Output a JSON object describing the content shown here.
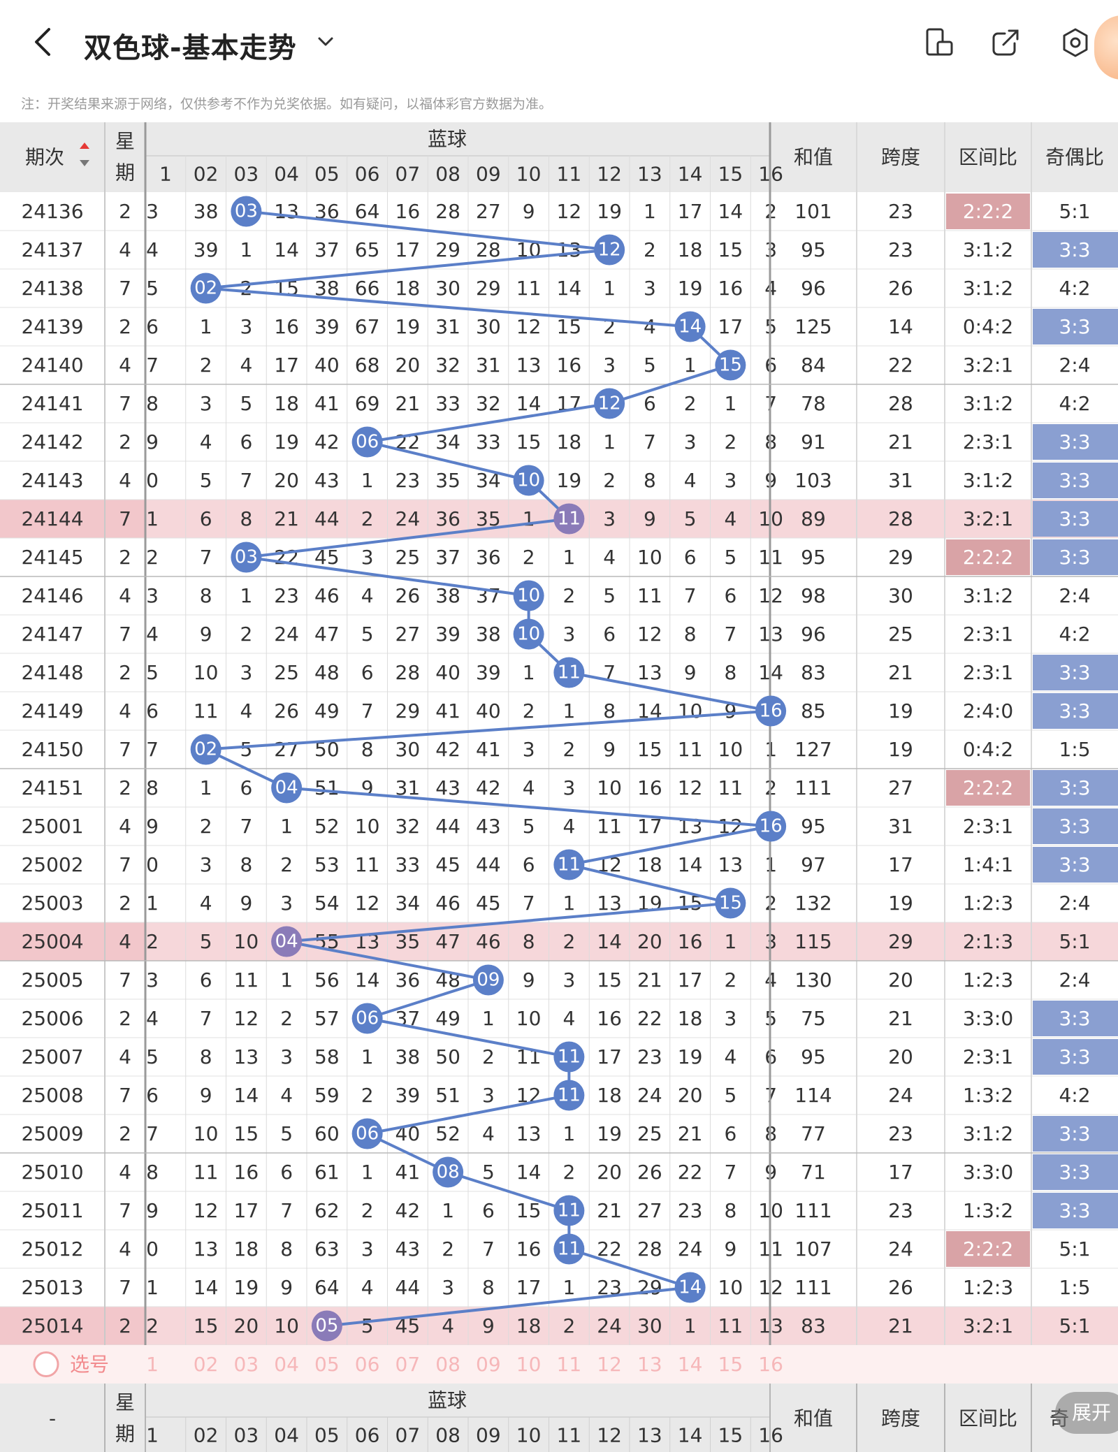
{
  "header": {
    "title": "双色球-基本走势"
  },
  "notice": "注：开奖结果来源于网络，仅供参考不作为兑奖依据。如有疑问，以福体彩官方数据为准。",
  "table": {
    "col_issue": "期次",
    "col_week": [
      "星",
      "期"
    ],
    "col_blue": "蓝球",
    "col_sum": "和值",
    "col_span": "跨度",
    "col_zone": "区间比",
    "col_odd": "奇偶比",
    "blue_nums": [
      "1",
      "02",
      "03",
      "04",
      "05",
      "06",
      "07",
      "08",
      "09",
      "10",
      "11",
      "12",
      "13",
      "14",
      "15",
      "16"
    ],
    "colors": {
      "ball": "#5b7fc8",
      "ball_highlight": "#8a7bb8",
      "zone_highlight": "#d9a3a6",
      "odd_highlight": "#8a9fd1",
      "row_highlight": "#f6d7da",
      "pick_row": "#fdf0f0"
    },
    "rows": [
      {
        "issue": "24136",
        "week": "2",
        "first": "3",
        "cells": [
          38,
          0,
          13,
          36,
          64,
          16,
          28,
          27,
          9,
          12,
          19,
          1,
          17,
          14,
          2
        ],
        "blue": 3,
        "sum": 101,
        "span": 23,
        "zone": "2:2:2",
        "zone_hl": true,
        "odd": "5:1",
        "odd_hl": false,
        "hl": false
      },
      {
        "issue": "24137",
        "week": "4",
        "first": "4",
        "cells": [
          39,
          1,
          14,
          37,
          65,
          17,
          29,
          28,
          10,
          13,
          0,
          2,
          18,
          15,
          3
        ],
        "blue": 12,
        "sum": 95,
        "span": 23,
        "zone": "3:1:2",
        "zone_hl": false,
        "odd": "3:3",
        "odd_hl": true,
        "hl": false
      },
      {
        "issue": "24138",
        "week": "7",
        "first": "5",
        "cells": [
          0,
          2,
          15,
          38,
          66,
          18,
          30,
          29,
          11,
          14,
          1,
          3,
          19,
          16,
          4
        ],
        "blue": 2,
        "sum": 96,
        "span": 26,
        "zone": "3:1:2",
        "zone_hl": false,
        "odd": "4:2",
        "odd_hl": false,
        "hl": false
      },
      {
        "issue": "24139",
        "week": "2",
        "first": "6",
        "cells": [
          1,
          3,
          16,
          39,
          67,
          19,
          31,
          30,
          12,
          15,
          2,
          4,
          0,
          17,
          5
        ],
        "blue": 14,
        "sum": 125,
        "span": 14,
        "zone": "0:4:2",
        "zone_hl": false,
        "odd": "3:3",
        "odd_hl": true,
        "hl": false
      },
      {
        "issue": "24140",
        "week": "4",
        "first": "7",
        "cells": [
          2,
          4,
          17,
          40,
          68,
          20,
          32,
          31,
          13,
          16,
          3,
          5,
          1,
          0,
          6
        ],
        "blue": 15,
        "sum": 84,
        "span": 22,
        "zone": "3:2:1",
        "zone_hl": false,
        "odd": "2:4",
        "odd_hl": false,
        "hl": false
      },
      {
        "issue": "24141",
        "week": "7",
        "first": "8",
        "cells": [
          3,
          5,
          18,
          41,
          69,
          21,
          33,
          32,
          14,
          17,
          0,
          6,
          2,
          1,
          7
        ],
        "blue": 12,
        "sum": 78,
        "span": 28,
        "zone": "3:1:2",
        "zone_hl": false,
        "odd": "4:2",
        "odd_hl": false,
        "hl": false
      },
      {
        "issue": "24142",
        "week": "2",
        "first": "9",
        "cells": [
          4,
          6,
          19,
          42,
          0,
          22,
          34,
          33,
          15,
          18,
          1,
          7,
          3,
          2,
          8
        ],
        "blue": 6,
        "sum": 91,
        "span": 21,
        "zone": "2:3:1",
        "zone_hl": false,
        "odd": "3:3",
        "odd_hl": true,
        "hl": false
      },
      {
        "issue": "24143",
        "week": "4",
        "first": "0",
        "cells": [
          5,
          7,
          20,
          43,
          1,
          23,
          35,
          34,
          0,
          19,
          2,
          8,
          4,
          3,
          9
        ],
        "blue": 10,
        "sum": 103,
        "span": 31,
        "zone": "3:1:2",
        "zone_hl": false,
        "odd": "3:3",
        "odd_hl": true,
        "hl": false
      },
      {
        "issue": "24144",
        "week": "7",
        "first": "1",
        "cells": [
          6,
          8,
          21,
          44,
          2,
          24,
          36,
          35,
          1,
          0,
          3,
          9,
          5,
          4,
          10
        ],
        "blue": 11,
        "sum": 89,
        "span": 28,
        "zone": "3:2:1",
        "zone_hl": false,
        "odd": "3:3",
        "odd_hl": true,
        "hl": true
      },
      {
        "issue": "24145",
        "week": "2",
        "first": "2",
        "cells": [
          7,
          0,
          22,
          45,
          3,
          25,
          37,
          36,
          2,
          1,
          4,
          10,
          6,
          5,
          11
        ],
        "blue": 3,
        "sum": 95,
        "span": 29,
        "zone": "2:2:2",
        "zone_hl": true,
        "odd": "3:3",
        "odd_hl": true,
        "hl": false
      },
      {
        "issue": "24146",
        "week": "4",
        "first": "3",
        "cells": [
          8,
          1,
          23,
          46,
          4,
          26,
          38,
          37,
          0,
          2,
          5,
          11,
          7,
          6,
          12
        ],
        "blue": 10,
        "sum": 98,
        "span": 30,
        "zone": "3:1:2",
        "zone_hl": false,
        "odd": "2:4",
        "odd_hl": false,
        "hl": false
      },
      {
        "issue": "24147",
        "week": "7",
        "first": "4",
        "cells": [
          9,
          2,
          24,
          47,
          5,
          27,
          39,
          38,
          0,
          3,
          6,
          12,
          8,
          7,
          13
        ],
        "blue": 10,
        "sum": 96,
        "span": 25,
        "zone": "2:3:1",
        "zone_hl": false,
        "odd": "4:2",
        "odd_hl": false,
        "hl": false
      },
      {
        "issue": "24148",
        "week": "2",
        "first": "5",
        "cells": [
          10,
          3,
          25,
          48,
          6,
          28,
          40,
          39,
          1,
          0,
          7,
          13,
          9,
          8,
          14
        ],
        "blue": 11,
        "sum": 83,
        "span": 21,
        "zone": "2:3:1",
        "zone_hl": false,
        "odd": "3:3",
        "odd_hl": true,
        "hl": false
      },
      {
        "issue": "24149",
        "week": "4",
        "first": "6",
        "cells": [
          11,
          4,
          26,
          49,
          7,
          29,
          41,
          40,
          2,
          1,
          8,
          14,
          10,
          9,
          0
        ],
        "blue": 16,
        "sum": 85,
        "span": 19,
        "zone": "2:4:0",
        "zone_hl": false,
        "odd": "3:3",
        "odd_hl": true,
        "hl": false
      },
      {
        "issue": "24150",
        "week": "7",
        "first": "7",
        "cells": [
          0,
          5,
          27,
          50,
          8,
          30,
          42,
          41,
          3,
          2,
          9,
          15,
          11,
          10,
          1
        ],
        "blue": 2,
        "sum": 127,
        "span": 19,
        "zone": "0:4:2",
        "zone_hl": false,
        "odd": "1:5",
        "odd_hl": false,
        "hl": false
      },
      {
        "issue": "24151",
        "week": "2",
        "first": "8",
        "cells": [
          1,
          6,
          0,
          51,
          9,
          31,
          43,
          42,
          4,
          3,
          10,
          16,
          12,
          11,
          2
        ],
        "blue": 4,
        "sum": 111,
        "span": 27,
        "zone": "2:2:2",
        "zone_hl": true,
        "odd": "3:3",
        "odd_hl": true,
        "hl": false
      },
      {
        "issue": "25001",
        "week": "4",
        "first": "9",
        "cells": [
          2,
          7,
          1,
          52,
          10,
          32,
          44,
          43,
          5,
          4,
          11,
          17,
          13,
          12,
          0
        ],
        "blue": 16,
        "sum": 95,
        "span": 31,
        "zone": "2:3:1",
        "zone_hl": false,
        "odd": "3:3",
        "odd_hl": true,
        "hl": false
      },
      {
        "issue": "25002",
        "week": "7",
        "first": "0",
        "cells": [
          3,
          8,
          2,
          53,
          11,
          33,
          45,
          44,
          6,
          0,
          12,
          18,
          14,
          13,
          1
        ],
        "blue": 11,
        "sum": 97,
        "span": 17,
        "zone": "1:4:1",
        "zone_hl": false,
        "odd": "3:3",
        "odd_hl": true,
        "hl": false
      },
      {
        "issue": "25003",
        "week": "2",
        "first": "1",
        "cells": [
          4,
          9,
          3,
          54,
          12,
          34,
          46,
          45,
          7,
          1,
          13,
          19,
          15,
          0,
          2
        ],
        "blue": 15,
        "sum": 132,
        "span": 19,
        "zone": "1:2:3",
        "zone_hl": false,
        "odd": "2:4",
        "odd_hl": false,
        "hl": false
      },
      {
        "issue": "25004",
        "week": "4",
        "first": "2",
        "cells": [
          5,
          10,
          0,
          55,
          13,
          35,
          47,
          46,
          8,
          2,
          14,
          20,
          16,
          1,
          3
        ],
        "blue": 4,
        "sum": 115,
        "span": 29,
        "zone": "2:1:3",
        "zone_hl": false,
        "odd": "5:1",
        "odd_hl": false,
        "hl": true
      },
      {
        "issue": "25005",
        "week": "7",
        "first": "3",
        "cells": [
          6,
          11,
          1,
          56,
          14,
          36,
          48,
          0,
          9,
          3,
          15,
          21,
          17,
          2,
          4
        ],
        "blue": 9,
        "sum": 130,
        "span": 20,
        "zone": "1:2:3",
        "zone_hl": false,
        "odd": "2:4",
        "odd_hl": false,
        "hl": false
      },
      {
        "issue": "25006",
        "week": "2",
        "first": "4",
        "cells": [
          7,
          12,
          2,
          57,
          0,
          37,
          49,
          1,
          10,
          4,
          16,
          22,
          18,
          3,
          5
        ],
        "blue": 6,
        "sum": 75,
        "span": 21,
        "zone": "3:3:0",
        "zone_hl": false,
        "odd": "3:3",
        "odd_hl": true,
        "hl": false
      },
      {
        "issue": "25007",
        "week": "4",
        "first": "5",
        "cells": [
          8,
          13,
          3,
          58,
          1,
          38,
          50,
          2,
          11,
          0,
          17,
          23,
          19,
          4,
          6
        ],
        "blue": 11,
        "sum": 95,
        "span": 20,
        "zone": "2:3:1",
        "zone_hl": false,
        "odd": "3:3",
        "odd_hl": true,
        "hl": false
      },
      {
        "issue": "25008",
        "week": "7",
        "first": "6",
        "cells": [
          9,
          14,
          4,
          59,
          2,
          39,
          51,
          3,
          12,
          0,
          18,
          24,
          20,
          5,
          7
        ],
        "blue": 11,
        "sum": 114,
        "span": 24,
        "zone": "1:3:2",
        "zone_hl": false,
        "odd": "4:2",
        "odd_hl": false,
        "hl": false
      },
      {
        "issue": "25009",
        "week": "2",
        "first": "7",
        "cells": [
          10,
          15,
          5,
          60,
          0,
          40,
          52,
          4,
          13,
          1,
          19,
          25,
          21,
          6,
          8
        ],
        "blue": 6,
        "sum": 77,
        "span": 23,
        "zone": "3:1:2",
        "zone_hl": false,
        "odd": "3:3",
        "odd_hl": true,
        "hl": false
      },
      {
        "issue": "25010",
        "week": "4",
        "first": "8",
        "cells": [
          11,
          16,
          6,
          61,
          1,
          41,
          0,
          5,
          14,
          2,
          20,
          26,
          22,
          7,
          9
        ],
        "blue": 8,
        "sum": 71,
        "span": 17,
        "zone": "3:3:0",
        "zone_hl": false,
        "odd": "3:3",
        "odd_hl": true,
        "hl": false
      },
      {
        "issue": "25011",
        "week": "7",
        "first": "9",
        "cells": [
          12,
          17,
          7,
          62,
          2,
          42,
          1,
          6,
          15,
          0,
          21,
          27,
          23,
          8,
          10
        ],
        "blue": 11,
        "sum": 111,
        "span": 23,
        "zone": "1:3:2",
        "zone_hl": false,
        "odd": "3:3",
        "odd_hl": true,
        "hl": false
      },
      {
        "issue": "25012",
        "week": "4",
        "first": "0",
        "cells": [
          13,
          18,
          8,
          63,
          3,
          43,
          2,
          7,
          16,
          0,
          22,
          28,
          24,
          9,
          11
        ],
        "blue": 11,
        "sum": 107,
        "span": 24,
        "zone": "2:2:2",
        "zone_hl": true,
        "odd": "5:1",
        "odd_hl": false,
        "hl": false
      },
      {
        "issue": "25013",
        "week": "7",
        "first": "1",
        "cells": [
          14,
          19,
          9,
          64,
          4,
          44,
          3,
          8,
          17,
          1,
          23,
          29,
          0,
          10,
          12
        ],
        "blue": 14,
        "sum": 111,
        "span": 26,
        "zone": "1:2:3",
        "zone_hl": false,
        "odd": "1:5",
        "odd_hl": false,
        "hl": false
      },
      {
        "issue": "25014",
        "week": "2",
        "first": "2",
        "cells": [
          15,
          20,
          10,
          0,
          5,
          45,
          4,
          9,
          18,
          2,
          24,
          30,
          1,
          11,
          13
        ],
        "blue": 5,
        "sum": 83,
        "span": 21,
        "zone": "3:2:1",
        "zone_hl": false,
        "odd": "5:1",
        "odd_hl": false,
        "hl": true
      }
    ],
    "pick_label": "选号",
    "footer_issue": "-",
    "footer_odd": "奇",
    "expand_label": "展开"
  }
}
